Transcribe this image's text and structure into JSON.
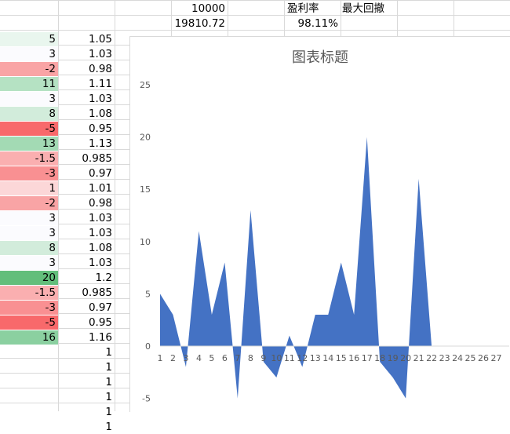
{
  "header": {
    "capital": "10000",
    "profit_rate_label": "盈利率",
    "max_drawdown_label": "最大回撤",
    "final_value": "19810.72",
    "profit_rate": "98.11%"
  },
  "rows": [
    {
      "change": "5",
      "ratio": "1.05",
      "fill": "#e9f6ee"
    },
    {
      "change": "3",
      "ratio": "1.03",
      "fill": "#fbfbfe"
    },
    {
      "change": "-2",
      "ratio": "0.98",
      "fill": "#f9a4a5"
    },
    {
      "change": "11",
      "ratio": "1.11",
      "fill": "#b5e2c3"
    },
    {
      "change": "3",
      "ratio": "1.03",
      "fill": "#fbfbfe"
    },
    {
      "change": "8",
      "ratio": "1.08",
      "fill": "#d2ecdb"
    },
    {
      "change": "-5",
      "ratio": "0.95",
      "fill": "#f8696b"
    },
    {
      "change": "13",
      "ratio": "1.13",
      "fill": "#a3dab4"
    },
    {
      "change": "-1.5",
      "ratio": "0.985",
      "fill": "#faafb0"
    },
    {
      "change": "-3",
      "ratio": "0.97",
      "fill": "#f99092"
    },
    {
      "change": "1",
      "ratio": "1.01",
      "fill": "#fcd7d8"
    },
    {
      "change": "-2",
      "ratio": "0.98",
      "fill": "#f9a4a5"
    },
    {
      "change": "3",
      "ratio": "1.03",
      "fill": "#fbfbfe"
    },
    {
      "change": "3",
      "ratio": "1.03",
      "fill": "#fbfbfe"
    },
    {
      "change": "8",
      "ratio": "1.08",
      "fill": "#d2ecdb"
    },
    {
      "change": "3",
      "ratio": "1.03",
      "fill": "#fbfbfe"
    },
    {
      "change": "20",
      "ratio": "1.2",
      "fill": "#63be7b"
    },
    {
      "change": "-1.5",
      "ratio": "0.985",
      "fill": "#faafb0"
    },
    {
      "change": "-3",
      "ratio": "0.97",
      "fill": "#f99092"
    },
    {
      "change": "-5",
      "ratio": "0.95",
      "fill": "#f8696b"
    },
    {
      "change": "16",
      "ratio": "1.16",
      "fill": "#8bd0a0"
    },
    {
      "change": "",
      "ratio": "1",
      "fill": ""
    },
    {
      "change": "",
      "ratio": "1",
      "fill": ""
    },
    {
      "change": "",
      "ratio": "1",
      "fill": ""
    },
    {
      "change": "",
      "ratio": "1",
      "fill": ""
    },
    {
      "change": "",
      "ratio": "1",
      "fill": ""
    },
    {
      "change": "",
      "ratio": "1",
      "fill": ""
    }
  ],
  "chart_data": {
    "type": "area",
    "title": "图表标题",
    "x": [
      1,
      2,
      3,
      4,
      5,
      6,
      7,
      8,
      9,
      10,
      11,
      12,
      13,
      14,
      15,
      16,
      17,
      18,
      19,
      20,
      21,
      22,
      23,
      24,
      25,
      26,
      27
    ],
    "values": [
      5,
      3,
      -2,
      11,
      3,
      8,
      -5,
      13,
      -1.5,
      -3,
      1,
      -2,
      3,
      3,
      8,
      3,
      20,
      -1.5,
      -3,
      -5,
      16,
      0,
      0,
      0,
      0,
      0,
      0
    ],
    "ylim": [
      -5,
      25
    ],
    "yticks": [
      -5,
      0,
      5,
      10,
      15,
      20,
      25
    ],
    "grid": false,
    "fill_color": "#4472c4"
  }
}
